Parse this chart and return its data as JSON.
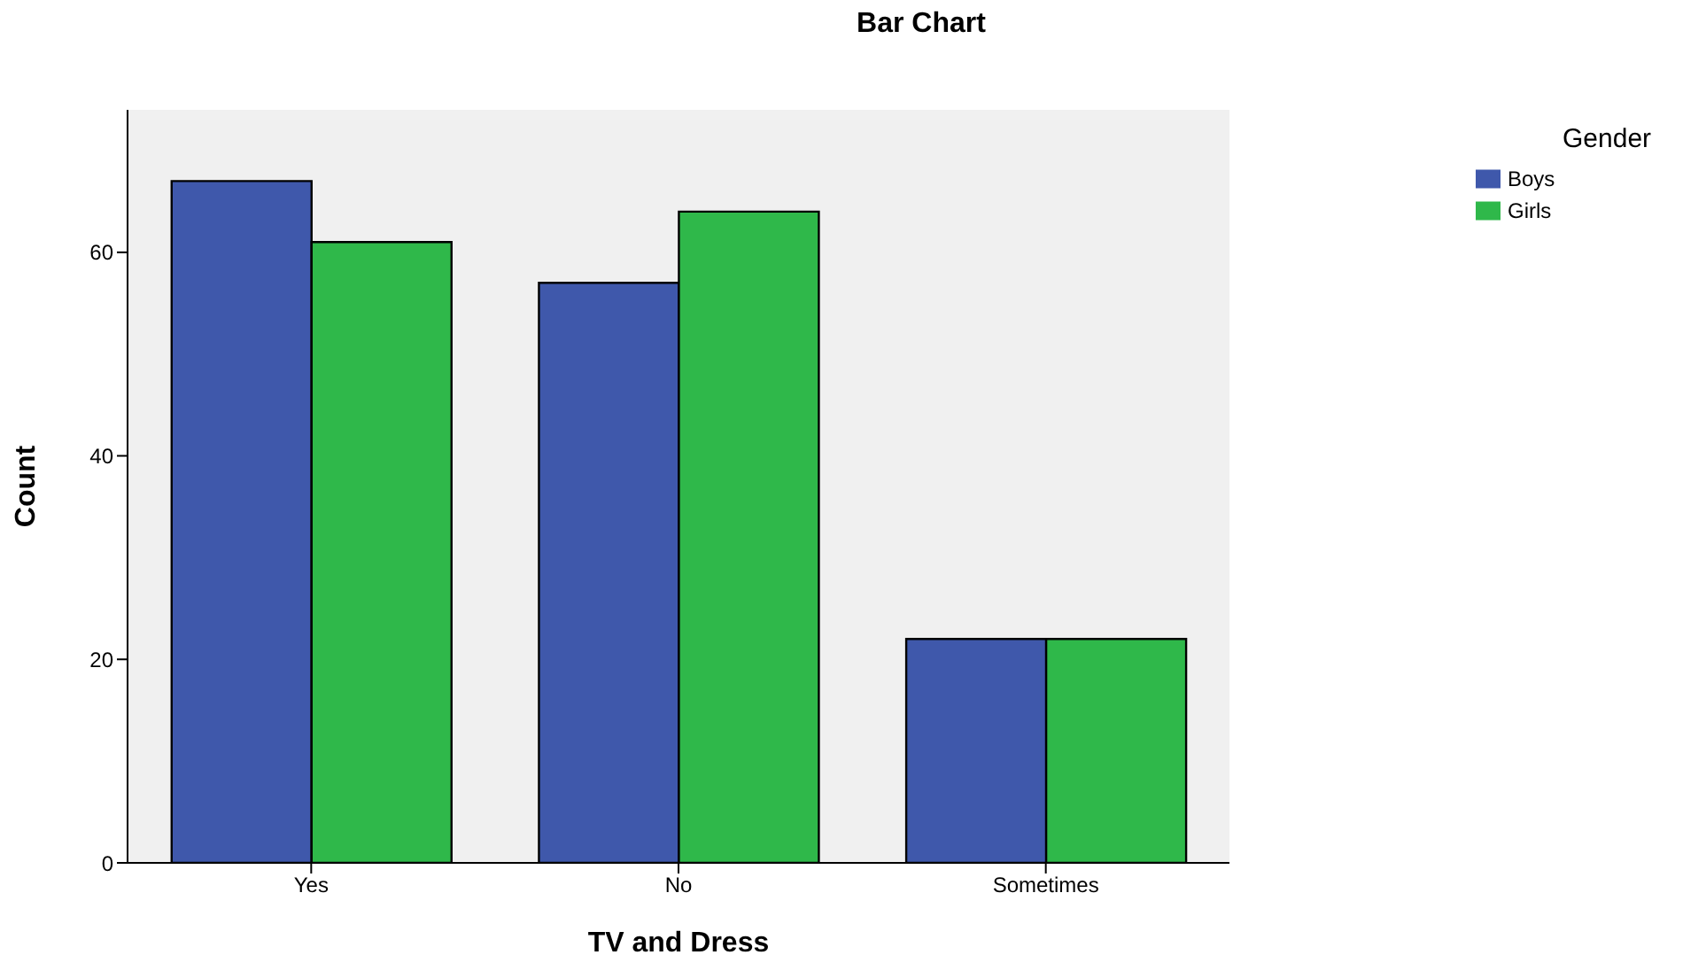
{
  "chart_data": {
    "type": "bar",
    "title": "Bar Chart",
    "xlabel": "TV and Dress",
    "ylabel": "Count",
    "legend_title": "Gender",
    "categories": [
      "Yes",
      "No",
      "Sometimes"
    ],
    "series": [
      {
        "name": "Boys",
        "color": "#3f58ab",
        "values": [
          67,
          57,
          22
        ]
      },
      {
        "name": "Girls",
        "color": "#2fb84a",
        "values": [
          61,
          64,
          22
        ]
      }
    ],
    "ylim": [
      0,
      74
    ],
    "yticks": [
      0,
      20,
      40,
      60
    ],
    "grid": false,
    "legend": "right"
  }
}
